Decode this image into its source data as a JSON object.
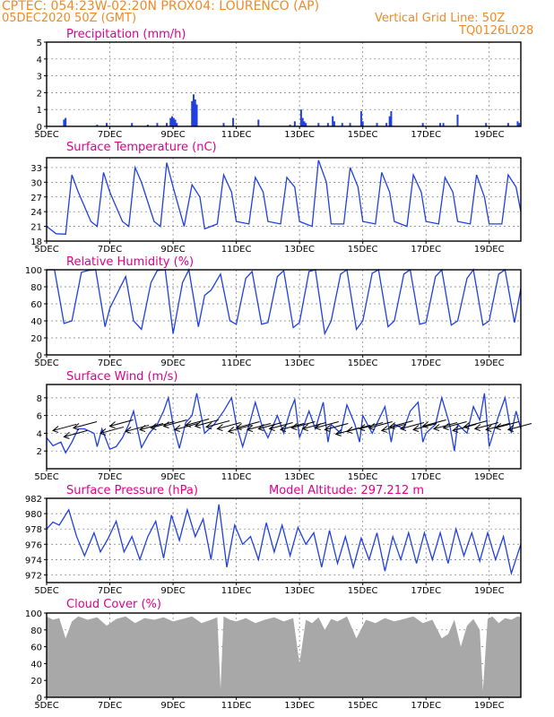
{
  "header": {
    "line1_left": "CPTEC:   054:23W-02:20N   PROX04: LOURENCO (AP)",
    "line2_left": "05DEC2020 50Z (GMT)",
    "line2_right": "Vertical Grid Line: 50Z",
    "line3_right": "TQ0126L028"
  },
  "x_axis": {
    "ticks": [
      "5DEC",
      "7DEC",
      "9DEC",
      "11DEC",
      "13DEC",
      "15DEC",
      "17DEC",
      "19DEC"
    ],
    "tick_days": [
      5,
      7,
      9,
      11,
      13,
      15,
      17,
      19
    ],
    "range_days": [
      5,
      20
    ]
  },
  "chart_data": [
    {
      "id": "precip",
      "type": "bar",
      "title": "Precipitation (mm/h)",
      "ylim": [
        0,
        5
      ],
      "yticks": [
        "0",
        "1",
        "2",
        "3",
        "4",
        "5"
      ],
      "grid": true,
      "x": [
        5.55,
        5.6,
        6.6,
        6.9,
        7.7,
        8.2,
        8.5,
        8.8,
        8.92,
        8.97,
        9.02,
        9.07,
        9.12,
        9.6,
        9.65,
        9.7,
        9.75,
        10.6,
        10.9,
        11.7,
        12.7,
        12.85,
        13.05,
        13.1,
        13.15,
        13.2,
        13.6,
        13.9,
        14.05,
        14.1,
        14.35,
        14.6,
        14.95,
        15.0,
        15.45,
        15.75,
        15.85,
        15.9,
        16.9,
        17.45,
        17.55,
        18.0,
        18.9,
        19.6,
        19.9,
        19.95
      ],
      "values": [
        0.4,
        0.5,
        0.1,
        0.2,
        0.2,
        0.1,
        0.2,
        0.2,
        0.5,
        0.6,
        0.5,
        0.4,
        0.2,
        1.5,
        1.9,
        1.6,
        1.3,
        0.2,
        0.5,
        0.4,
        0.1,
        0.3,
        1.0,
        0.5,
        0.3,
        0.2,
        0.2,
        0.2,
        0.6,
        0.3,
        0.2,
        0.2,
        0.9,
        0.3,
        0.2,
        0.2,
        0.6,
        0.9,
        0.2,
        0.2,
        0.2,
        0.7,
        0.2,
        0.2,
        0.3,
        0.2
      ]
    },
    {
      "id": "temp",
      "type": "line",
      "title": "Surface Temperature (nC)",
      "ylim": [
        18,
        35
      ],
      "yticks": [
        "18",
        "21",
        "24",
        "27",
        "30",
        "33"
      ],
      "grid": true,
      "x": [
        5.0,
        5.3,
        5.6,
        5.8,
        6.0,
        6.4,
        6.6,
        6.8,
        7.0,
        7.4,
        7.6,
        7.8,
        8.0,
        8.4,
        8.6,
        8.8,
        9.0,
        9.35,
        9.6,
        9.85,
        10.0,
        10.4,
        10.6,
        10.85,
        11.0,
        11.4,
        11.6,
        11.85,
        12.0,
        12.4,
        12.6,
        12.85,
        13.0,
        13.4,
        13.6,
        13.85,
        14.0,
        14.4,
        14.6,
        14.85,
        15.0,
        15.4,
        15.6,
        15.85,
        16.0,
        16.4,
        16.6,
        16.85,
        17.0,
        17.4,
        17.6,
        17.85,
        18.0,
        18.4,
        18.6,
        18.85,
        19.0,
        19.4,
        19.6,
        19.85,
        20.0
      ],
      "values": [
        21.0,
        19.5,
        19.4,
        31.5,
        28,
        22.0,
        21.0,
        32.0,
        28,
        22.0,
        21.0,
        33.0,
        30,
        22.0,
        21.0,
        34.0,
        29,
        21.0,
        29.5,
        27.0,
        20.5,
        21.5,
        31.5,
        28,
        22.0,
        21.5,
        31.0,
        28,
        22.0,
        21.5,
        31.0,
        29,
        22.0,
        21.0,
        34.5,
        30,
        21.5,
        21.5,
        33.0,
        29,
        22.0,
        21.5,
        32.0,
        28,
        22.0,
        21.0,
        31.5,
        28,
        22.0,
        21.5,
        31.0,
        28,
        22.0,
        21.5,
        31.5,
        27,
        21.5,
        21.5,
        31.5,
        29,
        24.0
      ]
    },
    {
      "id": "humidity",
      "type": "line",
      "title": "Relative Humidity (%)",
      "ylim": [
        0,
        100
      ],
      "yticks": [
        "0",
        "20",
        "40",
        "60",
        "80",
        "100"
      ],
      "grid": true,
      "x": [
        5.0,
        5.25,
        5.55,
        5.8,
        6.1,
        6.3,
        6.55,
        6.85,
        7.0,
        7.5,
        7.75,
        8.0,
        8.3,
        8.5,
        8.75,
        9.0,
        9.3,
        9.5,
        9.8,
        10.0,
        10.2,
        10.5,
        10.8,
        11.0,
        11.3,
        11.5,
        11.8,
        12.0,
        12.3,
        12.5,
        12.8,
        13.0,
        13.3,
        13.5,
        13.8,
        14.0,
        14.3,
        14.5,
        14.8,
        15.0,
        15.3,
        15.5,
        15.8,
        16.0,
        16.3,
        16.5,
        16.8,
        17.0,
        17.3,
        17.5,
        17.8,
        18.0,
        18.3,
        18.5,
        18.8,
        19.0,
        19.3,
        19.5,
        19.8,
        20.0
      ],
      "values": [
        100,
        100,
        37,
        40,
        97,
        99,
        100,
        33,
        55,
        92,
        40,
        30,
        85,
        99,
        100,
        25,
        85,
        100,
        33,
        70,
        76,
        95,
        40,
        36,
        90,
        98,
        36,
        38,
        92,
        99,
        32,
        38,
        98,
        100,
        25,
        40,
        95,
        100,
        30,
        40,
        96,
        100,
        33,
        40,
        95,
        100,
        36,
        38,
        92,
        100,
        35,
        40,
        90,
        100,
        35,
        40,
        95,
        100,
        38,
        78
      ]
    },
    {
      "id": "wind",
      "type": "line",
      "title": "Surface Wind (m/s)",
      "ylim": [
        0,
        9.5
      ],
      "yticks": [
        "2",
        "4",
        "6",
        "8"
      ],
      "grid": true,
      "x": [
        5.0,
        5.2,
        5.45,
        5.6,
        5.8,
        6.0,
        6.2,
        6.5,
        6.6,
        6.75,
        7.0,
        7.2,
        7.4,
        7.6,
        7.75,
        8.0,
        8.25,
        8.5,
        8.7,
        8.85,
        9.0,
        9.2,
        9.4,
        9.6,
        9.75,
        10.0,
        10.3,
        10.6,
        10.85,
        11.0,
        11.2,
        11.45,
        11.6,
        11.8,
        12.0,
        12.3,
        12.5,
        12.7,
        12.85,
        13.0,
        13.3,
        13.5,
        13.75,
        13.9,
        14.0,
        14.3,
        14.5,
        14.75,
        14.9,
        15.0,
        15.3,
        15.5,
        15.7,
        15.9,
        16.0,
        16.3,
        16.5,
        16.75,
        16.9,
        17.0,
        17.3,
        17.5,
        17.75,
        17.9,
        18.0,
        18.3,
        18.5,
        18.7,
        18.85,
        19.0,
        19.3,
        19.5,
        19.7,
        19.85,
        20.0
      ],
      "values": [
        3.5,
        2.6,
        3.0,
        1.8,
        3.0,
        4.5,
        4.5,
        4.0,
        2.5,
        4.5,
        2.2,
        2.5,
        3.5,
        5.0,
        6.5,
        2.4,
        4.0,
        5.0,
        6.5,
        8.0,
        5.0,
        2.3,
        5.2,
        6.0,
        8.5,
        4.0,
        5.0,
        6.5,
        8.0,
        5.0,
        2.5,
        5.5,
        7.5,
        5.0,
        3.5,
        6.0,
        4.0,
        6.5,
        7.8,
        3.5,
        6.5,
        4.5,
        7.5,
        3.0,
        5.0,
        4.0,
        7.2,
        5.0,
        3.0,
        6.0,
        4.0,
        5.5,
        7.0,
        3.0,
        5.0,
        4.5,
        6.5,
        7.5,
        3.0,
        4.0,
        5.0,
        8.0,
        5.0,
        2.0,
        5.0,
        4.0,
        7.0,
        5.5,
        8.5,
        2.5,
        6.0,
        8.0,
        4.0,
        6.5,
        4.5
      ],
      "arrows": {
        "x": [
          5.2,
          5.55,
          5.85,
          6.7,
          7.0,
          7.5,
          7.95,
          8.3,
          8.7,
          9.05,
          9.4,
          9.7,
          10.05,
          10.4,
          10.75,
          11.0,
          11.35,
          11.7,
          12.05,
          12.4,
          12.75,
          13.1,
          13.5,
          13.8,
          14.15,
          14.5,
          14.9,
          15.2,
          15.6,
          15.85,
          16.2,
          16.6,
          16.9,
          17.25,
          17.55,
          17.85,
          18.2,
          18.55,
          18.9,
          19.2,
          19.6
        ],
        "y": [
          4.3,
          3.6,
          4.6,
          4.0,
          4.8,
          4.2,
          4.4,
          4.6,
          4.8,
          4.4,
          4.9,
          4.8,
          4.7,
          4.5,
          4.2,
          4.6,
          4.4,
          4.5,
          4.5,
          4.4,
          4.6,
          4.5,
          4.6,
          4.4,
          3.9,
          4.2,
          4.5,
          4.6,
          4.3,
          4.7,
          4.5,
          4.4,
          4.8,
          4.5,
          4.6,
          4.3,
          4.7,
          4.5,
          4.4,
          4.6,
          4.4
        ]
      }
    },
    {
      "id": "pressure",
      "type": "line",
      "title": "Surface Pressure (hPa)",
      "annotation": "Model Altitude: 297.212 m",
      "ylim": [
        971,
        982
      ],
      "yticks": [
        "972",
        "974",
        "976",
        "978",
        "980",
        "982"
      ],
      "grid": true,
      "x": [
        5.0,
        5.2,
        5.4,
        5.7,
        5.95,
        6.2,
        6.5,
        6.7,
        6.95,
        7.2,
        7.45,
        7.7,
        7.95,
        8.2,
        8.45,
        8.7,
        8.95,
        9.2,
        9.45,
        9.7,
        9.95,
        10.2,
        10.45,
        10.7,
        10.95,
        11.2,
        11.45,
        11.7,
        11.95,
        12.2,
        12.45,
        12.7,
        12.95,
        13.2,
        13.45,
        13.7,
        13.95,
        14.2,
        14.45,
        14.7,
        14.95,
        15.2,
        15.45,
        15.7,
        15.95,
        16.2,
        16.45,
        16.7,
        16.95,
        17.2,
        17.45,
        17.7,
        17.95,
        18.2,
        18.45,
        18.7,
        18.95,
        19.2,
        19.45,
        19.7,
        20.0
      ],
      "values": [
        978,
        978.9,
        978.5,
        980.5,
        977,
        974.5,
        977.5,
        975,
        976.8,
        979,
        975,
        977,
        974,
        977,
        979,
        974.2,
        979.8,
        976.5,
        980.5,
        977,
        979.3,
        974,
        981.2,
        973,
        978.5,
        976,
        977,
        974,
        978.8,
        975,
        978.5,
        974.5,
        978.2,
        976,
        977.5,
        973,
        977.8,
        973.5,
        977,
        973,
        976.8,
        974,
        977.5,
        972.5,
        977,
        974,
        977.5,
        973.5,
        977.5,
        974,
        977.5,
        973.5,
        978,
        974.5,
        977.5,
        973.8,
        977.5,
        974,
        977,
        972.2,
        976
      ]
    },
    {
      "id": "cloud",
      "type": "area",
      "title": "Cloud Cover (%)",
      "ylim": [
        0,
        100
      ],
      "yticks": [
        "0",
        "20",
        "40",
        "60",
        "80",
        "100"
      ],
      "grid": true,
      "x": [
        5.0,
        5.2,
        5.4,
        5.6,
        5.8,
        6.0,
        6.3,
        6.6,
        6.9,
        7.2,
        7.5,
        7.8,
        8.1,
        8.4,
        8.7,
        9.0,
        9.3,
        9.6,
        9.9,
        10.2,
        10.4,
        10.5,
        10.6,
        10.8,
        11.0,
        11.3,
        11.6,
        11.9,
        12.2,
        12.5,
        12.8,
        13.0,
        13.2,
        13.4,
        13.6,
        13.8,
        14.0,
        14.2,
        14.5,
        14.8,
        15.1,
        15.4,
        15.7,
        16.0,
        16.3,
        16.6,
        16.9,
        17.2,
        17.5,
        17.7,
        17.9,
        18.1,
        18.3,
        18.5,
        18.7,
        18.8,
        18.95,
        19.1,
        19.3,
        19.5,
        19.7,
        19.9,
        20.0
      ],
      "values": [
        96,
        92,
        94,
        70,
        90,
        96,
        92,
        95,
        85,
        93,
        96,
        88,
        94,
        92,
        95,
        90,
        93,
        96,
        88,
        92,
        95,
        10,
        96,
        92,
        90,
        94,
        88,
        92,
        95,
        90,
        94,
        40,
        92,
        88,
        95,
        80,
        93,
        90,
        96,
        70,
        92,
        88,
        94,
        90,
        93,
        96,
        88,
        92,
        70,
        75,
        92,
        60,
        85,
        93,
        80,
        8,
        93,
        96,
        88,
        94,
        92,
        96,
        95
      ]
    }
  ]
}
